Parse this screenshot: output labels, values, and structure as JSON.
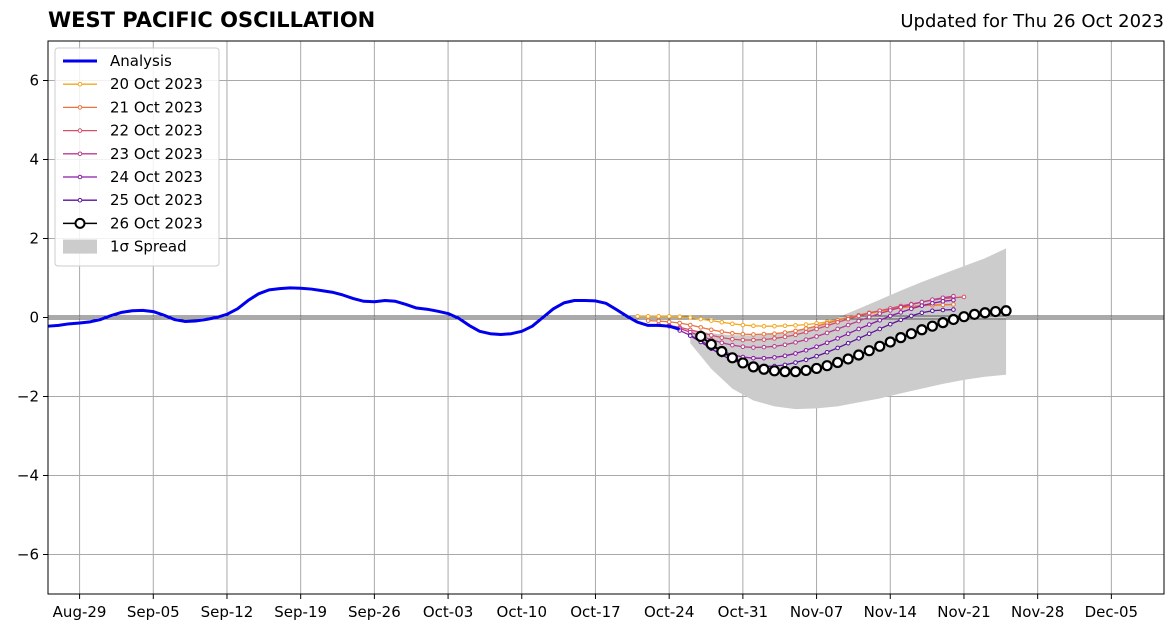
{
  "header": {
    "title": "WEST PACIFIC OSCILLATION",
    "updated": "Updated for Thu 26 Oct 2023"
  },
  "chart_data": {
    "type": "line",
    "title": "WEST PACIFIC OSCILLATION",
    "xlabel": "",
    "ylabel": "",
    "x_range": [
      "2023-08-26",
      "2023-12-10"
    ],
    "ylim": [
      -7,
      7
    ],
    "grid": true,
    "legend_position": "top-left",
    "x_ticks": [
      "Aug-29",
      "Sep-05",
      "Sep-12",
      "Sep-19",
      "Sep-26",
      "Oct-03",
      "Oct-10",
      "Oct-17",
      "Oct-24",
      "Oct-31",
      "Nov-07",
      "Nov-14",
      "Nov-21",
      "Nov-28",
      "Dec-05"
    ],
    "x_tick_dates": [
      "2023-08-29",
      "2023-09-05",
      "2023-09-12",
      "2023-09-19",
      "2023-09-26",
      "2023-10-03",
      "2023-10-10",
      "2023-10-17",
      "2023-10-24",
      "2023-10-31",
      "2023-11-07",
      "2023-11-14",
      "2023-11-21",
      "2023-11-28",
      "2023-12-05"
    ],
    "y_ticks": [
      6,
      4,
      2,
      0,
      -2,
      -4,
      -6
    ],
    "y_tick_labels": [
      "6",
      "4",
      "2",
      "0",
      "−2",
      "−4",
      "−6"
    ],
    "analysis": {
      "name": "Analysis",
      "color": "#0000ee",
      "dates": [
        "2023-08-27",
        "2023-08-28",
        "2023-08-29",
        "2023-08-30",
        "2023-08-31",
        "2023-09-01",
        "2023-09-02",
        "2023-09-03",
        "2023-09-04",
        "2023-09-05",
        "2023-09-06",
        "2023-09-07",
        "2023-09-08",
        "2023-09-09",
        "2023-09-10",
        "2023-09-11",
        "2023-09-12",
        "2023-09-13",
        "2023-09-14",
        "2023-09-15",
        "2023-09-16",
        "2023-09-17",
        "2023-09-18",
        "2023-09-19",
        "2023-09-20",
        "2023-09-21",
        "2023-09-22",
        "2023-09-23",
        "2023-09-24",
        "2023-09-25",
        "2023-09-26",
        "2023-09-27",
        "2023-09-28",
        "2023-09-29",
        "2023-09-30",
        "2023-10-01",
        "2023-10-02",
        "2023-10-03",
        "2023-10-04",
        "2023-10-05",
        "2023-10-06",
        "2023-10-07",
        "2023-10-08",
        "2023-10-09",
        "2023-10-10",
        "2023-10-11",
        "2023-10-12",
        "2023-10-13",
        "2023-10-14",
        "2023-10-15",
        "2023-10-16",
        "2023-10-17",
        "2023-10-18",
        "2023-10-19",
        "2023-10-20",
        "2023-10-21",
        "2023-10-22",
        "2023-10-23",
        "2023-10-24",
        "2023-10-25"
      ],
      "values": [
        -0.2,
        -0.16,
        -0.14,
        -0.11,
        -0.05,
        0.05,
        0.13,
        0.17,
        0.18,
        0.15,
        0.06,
        -0.05,
        -0.1,
        -0.09,
        -0.05,
        0.0,
        0.08,
        0.22,
        0.43,
        0.6,
        0.7,
        0.73,
        0.75,
        0.74,
        0.72,
        0.68,
        0.64,
        0.57,
        0.48,
        0.41,
        0.4,
        0.43,
        0.41,
        0.33,
        0.24,
        0.21,
        0.16,
        0.1,
        -0.02,
        -0.2,
        -0.35,
        -0.41,
        -0.43,
        -0.41,
        -0.35,
        -0.22,
        0.0,
        0.22,
        0.37,
        0.43,
        0.43,
        0.42,
        0.36,
        0.2,
        0.03,
        -0.12,
        -0.2,
        -0.2,
        -0.22,
        -0.3
      ]
    },
    "spread": {
      "name": "1σ Spread",
      "color": "#cccccc",
      "dates": [
        "2023-10-26",
        "2023-10-28",
        "2023-10-30",
        "2023-11-01",
        "2023-11-03",
        "2023-11-05",
        "2023-11-07",
        "2023-11-09",
        "2023-11-11",
        "2023-11-13",
        "2023-11-15",
        "2023-11-17",
        "2023-11-19",
        "2023-11-21",
        "2023-11-23",
        "2023-11-25"
      ],
      "upper": [
        -0.3,
        -0.4,
        -0.45,
        -0.45,
        -0.42,
        -0.35,
        -0.2,
        0.0,
        0.22,
        0.45,
        0.68,
        0.9,
        1.1,
        1.3,
        1.5,
        1.75
      ],
      "lower": [
        -0.65,
        -1.3,
        -1.8,
        -2.1,
        -2.25,
        -2.32,
        -2.3,
        -2.25,
        -2.15,
        -2.05,
        -1.92,
        -1.8,
        -1.68,
        -1.58,
        -1.5,
        -1.45
      ]
    },
    "series": [
      {
        "name": "20 Oct 2023",
        "color": "#f4a81e",
        "start": "2023-10-21",
        "values": [
          0.03,
          0.03,
          0.03,
          0.03,
          0.02,
          0.0,
          -0.04,
          -0.08,
          -0.12,
          -0.16,
          -0.19,
          -0.21,
          -0.22,
          -0.22,
          -0.21,
          -0.2,
          -0.18,
          -0.15,
          -0.11,
          -0.06,
          0.0,
          0.05,
          0.1,
          0.15,
          0.2,
          0.24,
          0.27,
          0.3,
          0.32,
          0.33
        ]
      },
      {
        "name": "21 Oct 2023",
        "color": "#e8743e",
        "start": "2023-10-22",
        "values": [
          -0.08,
          -0.09,
          -0.11,
          -0.14,
          -0.19,
          -0.25,
          -0.31,
          -0.36,
          -0.4,
          -0.42,
          -0.43,
          -0.42,
          -0.41,
          -0.38,
          -0.34,
          -0.28,
          -0.22,
          -0.15,
          -0.07,
          0.0,
          0.06,
          0.12,
          0.17,
          0.21,
          0.25,
          0.28,
          0.3,
          0.31,
          0.32,
          0.33
        ]
      },
      {
        "name": "22 Oct 2023",
        "color": "#d4506a",
        "start": "2023-10-23",
        "values": [
          -0.18,
          -0.2,
          -0.25,
          -0.31,
          -0.38,
          -0.45,
          -0.51,
          -0.55,
          -0.57,
          -0.57,
          -0.56,
          -0.53,
          -0.49,
          -0.44,
          -0.37,
          -0.29,
          -0.21,
          -0.12,
          -0.04,
          0.04,
          0.11,
          0.17,
          0.23,
          0.29,
          0.34,
          0.39,
          0.44,
          0.48,
          0.5,
          0.52
        ]
      },
      {
        "name": "23 Oct 2023",
        "color": "#b83c8e",
        "start": "2023-10-24",
        "values": [
          -0.22,
          -0.28,
          -0.37,
          -0.47,
          -0.56,
          -0.64,
          -0.7,
          -0.74,
          -0.76,
          -0.75,
          -0.73,
          -0.69,
          -0.63,
          -0.56,
          -0.48,
          -0.39,
          -0.29,
          -0.19,
          -0.09,
          0.01,
          0.1,
          0.18,
          0.26,
          0.33,
          0.39,
          0.45,
          0.5,
          0.54
        ]
      },
      {
        "name": "24 Oct 2023",
        "color": "#8a1aa8",
        "start": "2023-10-25",
        "values": [
          -0.33,
          -0.45,
          -0.59,
          -0.73,
          -0.85,
          -0.94,
          -1.0,
          -1.03,
          -1.03,
          -1.01,
          -0.97,
          -0.91,
          -0.83,
          -0.74,
          -0.64,
          -0.53,
          -0.41,
          -0.29,
          -0.18,
          -0.07,
          0.04,
          0.13,
          0.22,
          0.3,
          0.36,
          0.41,
          0.44
        ]
      },
      {
        "name": "25 Oct 2023",
        "color": "#5a129a",
        "start": "2023-10-26",
        "values": [
          -0.46,
          -0.62,
          -0.79,
          -0.95,
          -1.08,
          -1.17,
          -1.22,
          -1.24,
          -1.23,
          -1.2,
          -1.14,
          -1.07,
          -0.98,
          -0.88,
          -0.77,
          -0.65,
          -0.53,
          -0.41,
          -0.29,
          -0.17,
          -0.06,
          0.04,
          0.12,
          0.17,
          0.19,
          0.2
        ]
      },
      {
        "name": "26 Oct 2023",
        "color": "#000000",
        "start": "2023-10-27",
        "values": [
          -0.48,
          -0.68,
          -0.86,
          -1.02,
          -1.15,
          -1.25,
          -1.31,
          -1.35,
          -1.37,
          -1.37,
          -1.34,
          -1.29,
          -1.22,
          -1.14,
          -1.05,
          -0.95,
          -0.84,
          -0.73,
          -0.62,
          -0.51,
          -0.41,
          -0.31,
          -0.22,
          -0.13,
          -0.05,
          0.02,
          0.08,
          0.12,
          0.15,
          0.17
        ]
      }
    ]
  }
}
